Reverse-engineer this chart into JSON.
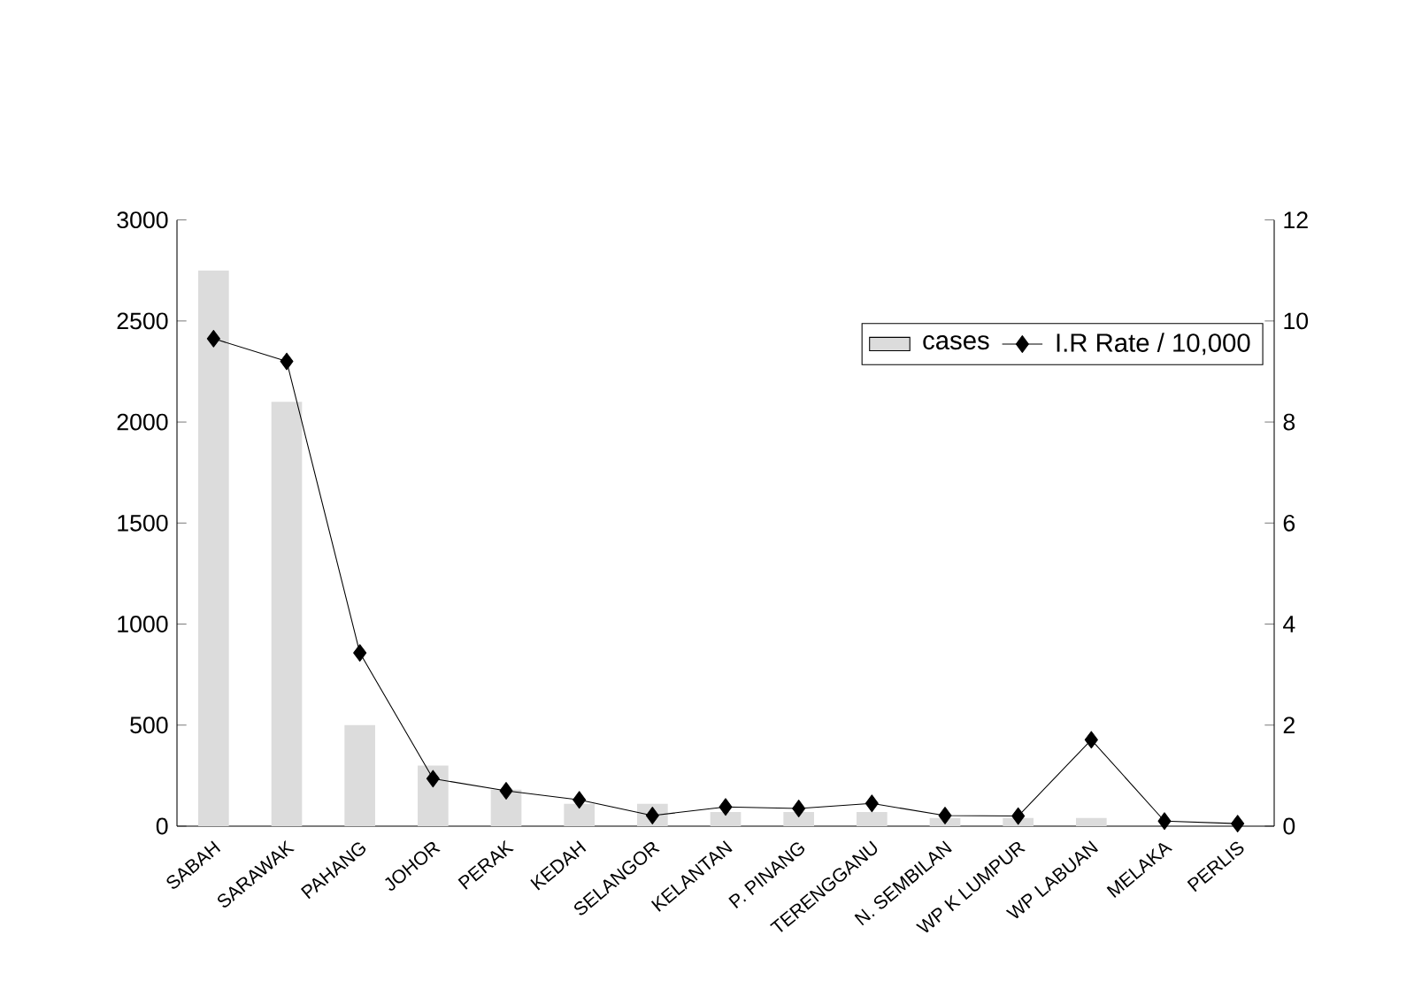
{
  "chart_data": {
    "type": "bar",
    "categories": [
      "SABAH",
      "SARAWAK",
      "PAHANG",
      "JOHOR",
      "PERAK",
      "KEDAH",
      "SELANGOR",
      "KELANTAN",
      "P. PINANG",
      "TERENGGANU",
      "N. SEMBILAN",
      "WP K LUMPUR",
      "WP LABUAN",
      "MELAKA",
      "PERLIS"
    ],
    "series": [
      {
        "name": "cases",
        "color": "#dcdcdc",
        "values": [
          2750,
          2100,
          500,
          300,
          180,
          110,
          110,
          70,
          70,
          70,
          40,
          40,
          40,
          null,
          null
        ]
      },
      {
        "name": "I.R Rate / 10,000",
        "type": "line",
        "axis": "y2",
        "color": "#000000",
        "marker": "diamond",
        "values": [
          9.65,
          9.2,
          3.43,
          0.94,
          0.7,
          0.52,
          0.21,
          0.38,
          0.35,
          0.45,
          0.21,
          0.2,
          1.71,
          0.1,
          0.05
        ]
      }
    ],
    "ylim": [
      0,
      3000
    ],
    "yticks": [
      0,
      500,
      1000,
      1500,
      2000,
      2500,
      3000
    ],
    "y2lim": [
      0,
      12
    ],
    "y2ticks": [
      0,
      2,
      4,
      6,
      8,
      10,
      12
    ],
    "legend": "top right"
  }
}
